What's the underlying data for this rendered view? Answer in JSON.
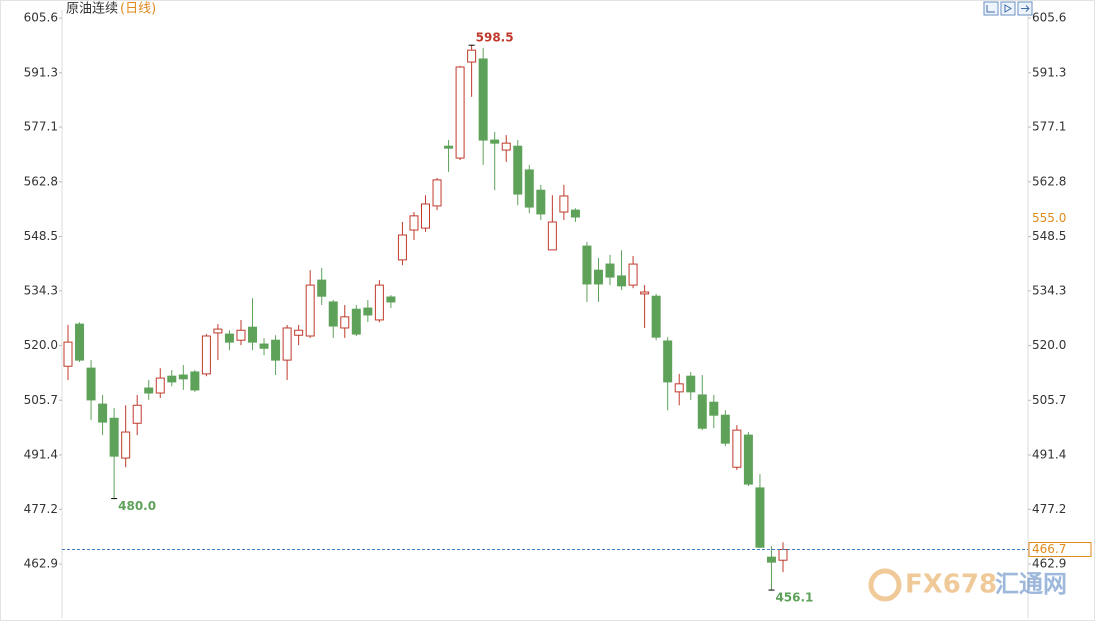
{
  "chart_data": {
    "type": "candlestick",
    "title": "原油连续",
    "subtitle": "(日线)",
    "open": [
      514.6,
      525.6,
      514.1,
      504.7,
      501.0,
      490.6,
      499.7,
      508.9,
      507.6,
      512.0,
      512.3,
      513.1,
      512.6,
      523.3,
      523.0,
      521.4,
      524.8,
      520.4,
      521.4,
      516.2,
      522.7,
      522.5,
      537.1,
      531.4,
      524.6,
      529.5,
      529.8,
      526.7,
      532.7,
      542.4,
      550.2,
      550.7,
      556.5,
      572.1,
      569.0,
      594.1,
      594.9,
      573.7,
      571.1,
      572.1,
      565.9,
      560.6,
      545.0,
      554.9,
      555.4,
      546.0,
      539.7,
      541.3,
      538.2,
      535.8,
      533.5,
      532.9,
      521.2,
      507.9,
      512.0,
      507.1,
      505.2,
      501.8,
      488.2,
      496.6,
      482.8,
      464.7,
      463.9
    ],
    "high": [
      525.4,
      526.1,
      516.2,
      507.1,
      503.7,
      504.4,
      507.1,
      511.0,
      514.1,
      513.6,
      514.9,
      513.6,
      523.0,
      525.6,
      524.0,
      526.7,
      532.4,
      521.9,
      522.7,
      525.4,
      525.4,
      539.7,
      540.3,
      531.9,
      530.6,
      530.6,
      531.9,
      537.1,
      533.2,
      552.3,
      554.9,
      559.3,
      563.8,
      573.7,
      593.1,
      598.5,
      597.8,
      575.8,
      575.0,
      573.7,
      567.2,
      562.0,
      559.3,
      562.0,
      555.9,
      547.1,
      542.9,
      543.7,
      544.9,
      543.4,
      535.8,
      533.5,
      522.2,
      512.6,
      513.1,
      512.3,
      507.1,
      503.1,
      499.2,
      497.4,
      486.4,
      467.6,
      468.6
    ],
    "low": [
      511.0,
      515.7,
      500.5,
      496.6,
      480.0,
      488.2,
      496.6,
      505.8,
      506.3,
      509.4,
      508.4,
      507.9,
      512.0,
      516.2,
      518.8,
      520.1,
      518.8,
      517.5,
      512.3,
      511.0,
      520.1,
      522.0,
      530.6,
      522.0,
      522.0,
      522.5,
      526.1,
      526.1,
      529.8,
      541.0,
      547.6,
      549.7,
      555.4,
      565.4,
      568.5,
      585.0,
      567.2,
      560.6,
      568.0,
      556.7,
      554.6,
      552.8,
      545.0,
      552.8,
      552.3,
      531.4,
      531.4,
      535.8,
      534.5,
      535.0,
      524.6,
      521.4,
      503.1,
      504.4,
      505.8,
      497.9,
      498.4,
      493.7,
      487.5,
      483.3,
      467.1,
      456.1,
      460.8
    ],
    "close": [
      520.9,
      516.2,
      505.8,
      500.0,
      491.1,
      497.4,
      504.4,
      507.6,
      511.5,
      510.5,
      511.3,
      508.4,
      522.5,
      524.3,
      520.9,
      524.0,
      520.9,
      519.3,
      516.2,
      524.6,
      524.0,
      535.8,
      532.9,
      525.1,
      527.5,
      523.0,
      528.0,
      535.8,
      531.4,
      548.9,
      553.9,
      557.0,
      563.3,
      571.6,
      592.8,
      597.2,
      573.7,
      572.9,
      572.9,
      559.6,
      556.2,
      554.4,
      552.3,
      559.1,
      553.6,
      536.1,
      536.1,
      537.9,
      535.6,
      541.3,
      534.0,
      522.2,
      510.5,
      510.0,
      507.9,
      498.4,
      501.8,
      494.5,
      497.9,
      483.8,
      467.3,
      463.4,
      466.7
    ],
    "up_color": "#c0392b",
    "down_color": "#5ea25a",
    "ylim": [
      448.8,
      607.7
    ],
    "yticks": [
      462.9,
      477.2,
      491.4,
      505.7,
      {
        "value": 520,
        "label": "520.0"
      },
      534.3,
      548.5,
      562.8,
      577.1,
      591.3,
      605.6
    ],
    "annotations": [
      {
        "value": 598.5,
        "label": "598.5"
      },
      {
        "value": 480,
        "label": "480.0"
      },
      {
        "value": 456.1,
        "label": "456.1"
      }
    ],
    "marker_label": {
      "value": 555,
      "label": "555.0"
    },
    "last_price": {
      "value": 466.7,
      "label": "466.7"
    },
    "watermark": {
      "brand": "FX678",
      "name": "汇通网"
    },
    "grid": false
  }
}
